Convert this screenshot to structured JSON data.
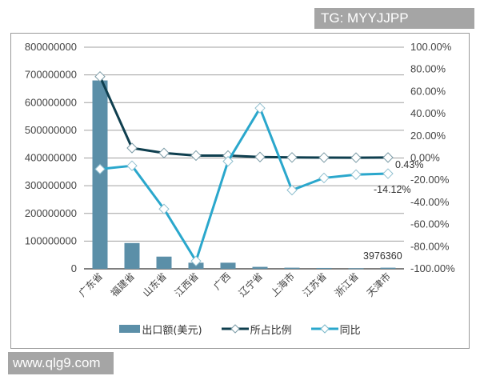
{
  "watermarks": {
    "top": "TG: MYYJJPP",
    "bottom": "www.qlg9.com"
  },
  "colors": {
    "bar": "#5b8fa8",
    "share_line": "#0f3f4f",
    "yoy_line": "#2aa7cc",
    "grid": "#a0a0a0"
  },
  "chart_data": {
    "type": "bar+line",
    "title": "",
    "xlabel": "",
    "ylabel": "",
    "categories": [
      "广东省",
      "福建省",
      "山东省",
      "江西省",
      "广西",
      "辽宁省",
      "上海市",
      "江苏省",
      "浙江省",
      "天津市"
    ],
    "series": [
      {
        "name": "出口额(美元)",
        "type": "bar",
        "axis": "left",
        "values": [
          680000000,
          93000000,
          44000000,
          22000000,
          22000000,
          7000000,
          4000000,
          3000000,
          2000000,
          3976360
        ]
      },
      {
        "name": "所占比例",
        "type": "line",
        "axis": "right",
        "unit": "%",
        "values": [
          73.5,
          9.0,
          4.5,
          2.2,
          2.2,
          0.9,
          0.5,
          0.4,
          0.3,
          0.43
        ]
      },
      {
        "name": "同比",
        "type": "line",
        "axis": "right",
        "unit": "%",
        "values": [
          -10.0,
          -7.0,
          -46.0,
          -93.0,
          -3.0,
          45.0,
          -29.0,
          -18.0,
          -15.0,
          -14.12
        ]
      }
    ],
    "left_axis": {
      "ylim": [
        0,
        800000000
      ],
      "ticks": [
        "0",
        "100000000",
        "200000000",
        "300000000",
        "400000000",
        "500000000",
        "600000000",
        "700000000",
        "800000000"
      ]
    },
    "right_axis": {
      "ylim": [
        -100,
        100
      ],
      "ticks": [
        "-100.00%",
        "-80.00%",
        "-60.00%",
        "-40.00%",
        "-20.00%",
        "0.00%",
        "20.00%",
        "40.00%",
        "60.00%",
        "80.00%",
        "100.00%"
      ]
    },
    "annotations": [
      {
        "text": "3976360",
        "category": "天津市",
        "series": "出口额(美元)"
      },
      {
        "text": "0.43%",
        "category": "天津市",
        "series": "所占比例"
      },
      {
        "text": "-14.12%",
        "category": "天津市",
        "series": "同比"
      }
    ],
    "grid": true,
    "legend_position": "bottom"
  },
  "legend": {
    "items": [
      "出口额(美元)",
      "所占比例",
      "同比"
    ]
  }
}
